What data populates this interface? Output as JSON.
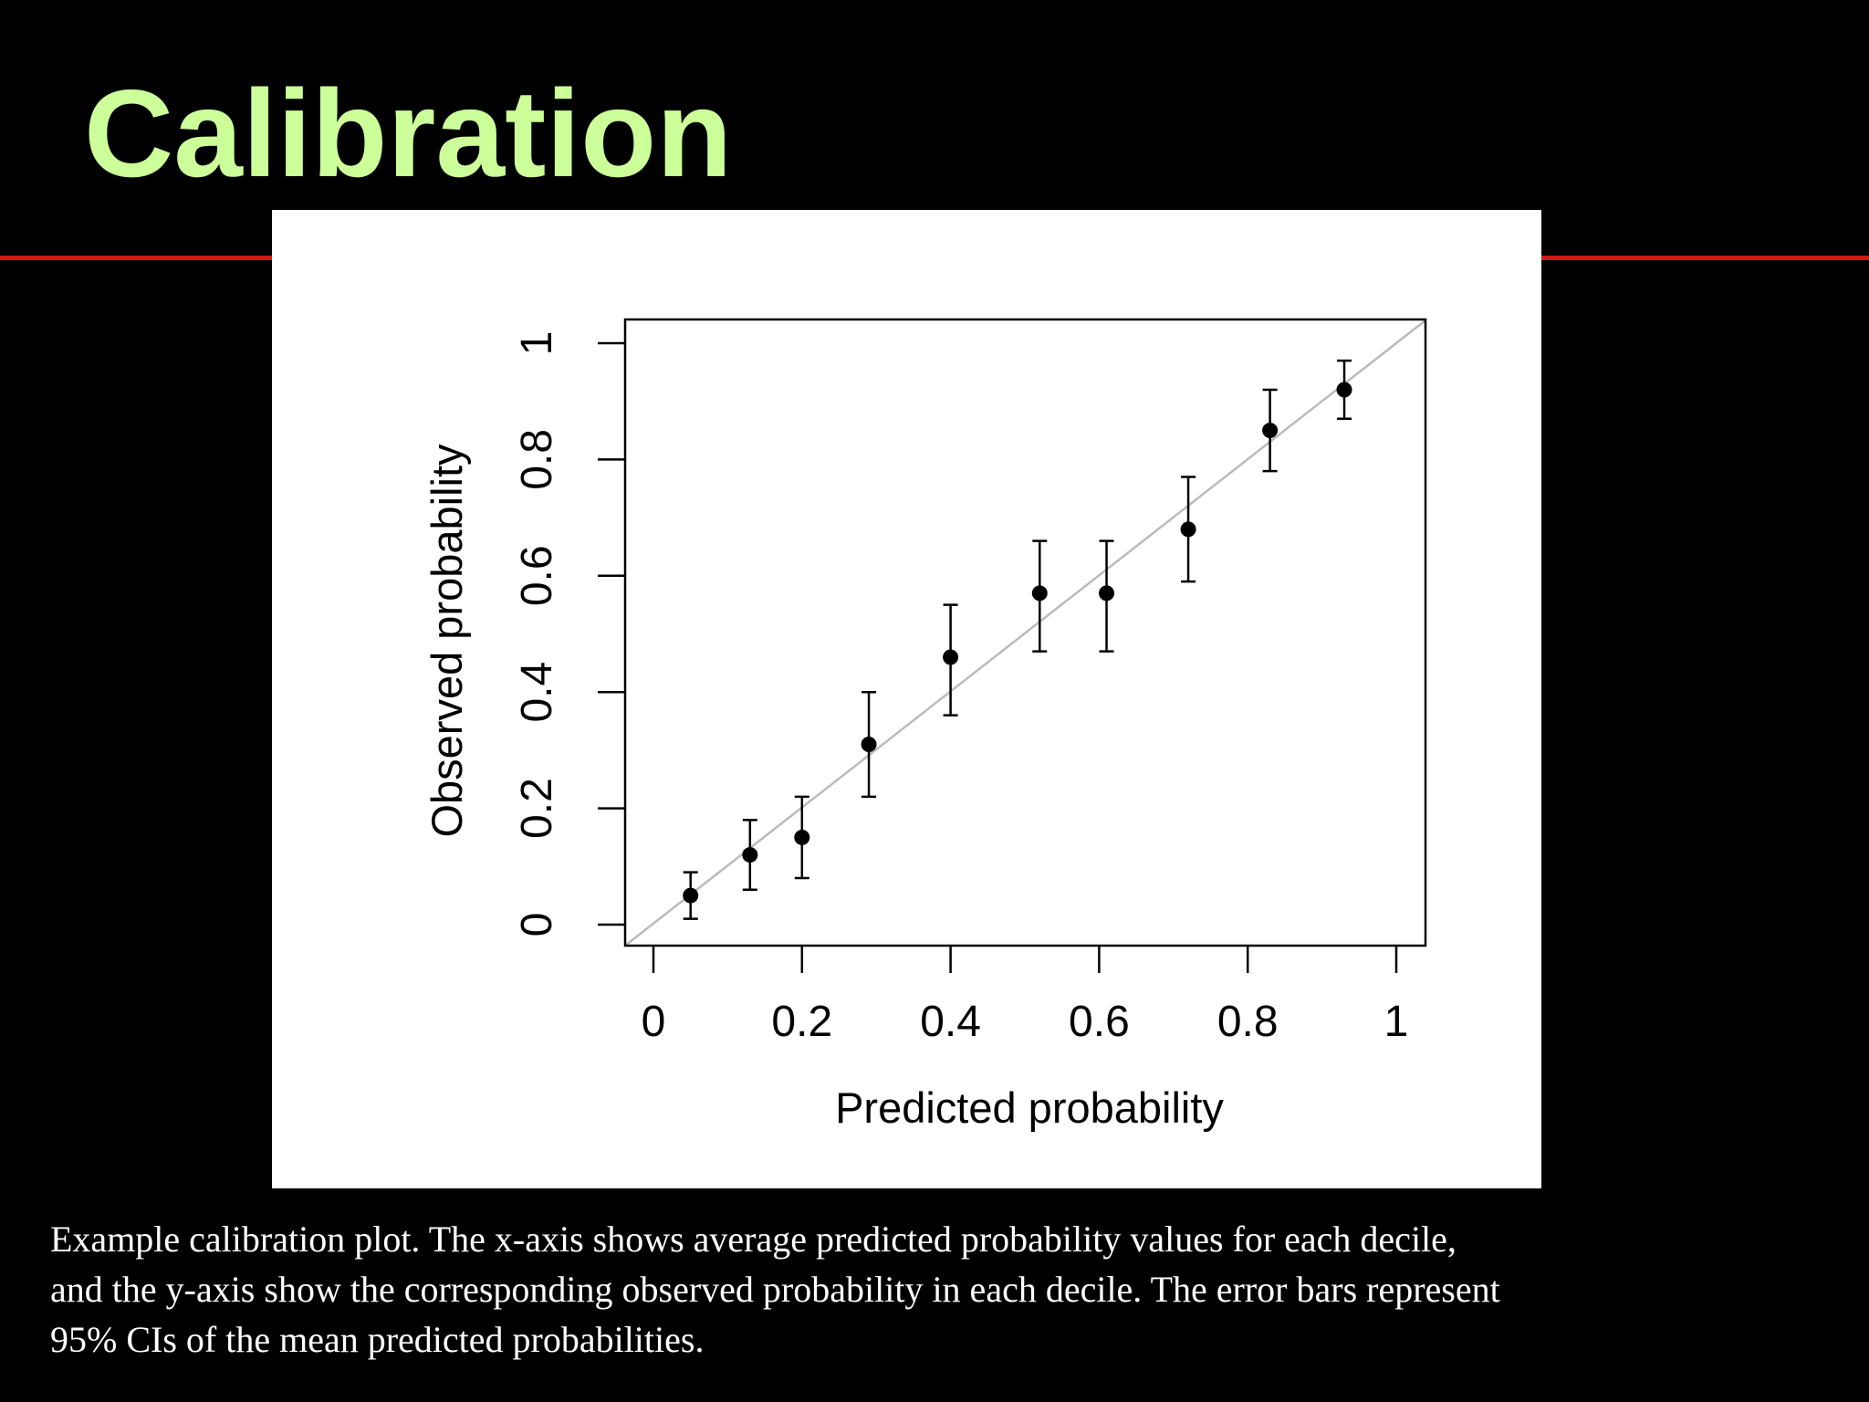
{
  "slide": {
    "title": "Calibration",
    "caption_lines": [
      "Example calibration plot. The x-axis shows average predicted probability values for each decile,",
      "and the y-axis show the corresponding observed probability in each decile. The error bars represent",
      "95% CIs of the mean predicted probabilities."
    ],
    "colors": {
      "background": "#000000",
      "title": "#ccff99",
      "rule": "#d01818",
      "caption": "#ffffff",
      "plot_background": "#ffffff",
      "reference_line": "#bbbbbb",
      "points": "#000000"
    }
  },
  "chart_data": {
    "type": "scatter",
    "title": "",
    "xlabel": "Predicted probability",
    "ylabel": "Observed probability",
    "xlim": [
      0,
      1
    ],
    "ylim": [
      0,
      1
    ],
    "x_ticks": [
      0,
      0.2,
      0.4,
      0.6,
      0.8,
      1
    ],
    "x_tick_labels": [
      "0",
      "0.2",
      "0.4",
      "0.6",
      "0.8",
      "1"
    ],
    "y_ticks": [
      0,
      0.2,
      0.4,
      0.6,
      0.8,
      1
    ],
    "y_tick_labels": [
      "0",
      "0.2",
      "0.4",
      "0.6",
      "0.8",
      "1"
    ],
    "grid": false,
    "legend": "none",
    "reference_line": {
      "from": [
        0,
        0
      ],
      "to": [
        1,
        1
      ]
    },
    "points": [
      {
        "x": 0.05,
        "y": 0.05,
        "ci_low": 0.01,
        "ci_high": 0.09
      },
      {
        "x": 0.13,
        "y": 0.12,
        "ci_low": 0.06,
        "ci_high": 0.18
      },
      {
        "x": 0.2,
        "y": 0.15,
        "ci_low": 0.08,
        "ci_high": 0.22
      },
      {
        "x": 0.29,
        "y": 0.31,
        "ci_low": 0.22,
        "ci_high": 0.4
      },
      {
        "x": 0.4,
        "y": 0.46,
        "ci_low": 0.36,
        "ci_high": 0.55
      },
      {
        "x": 0.52,
        "y": 0.57,
        "ci_low": 0.47,
        "ci_high": 0.66
      },
      {
        "x": 0.61,
        "y": 0.57,
        "ci_low": 0.47,
        "ci_high": 0.66
      },
      {
        "x": 0.72,
        "y": 0.68,
        "ci_low": 0.59,
        "ci_high": 0.77
      },
      {
        "x": 0.83,
        "y": 0.85,
        "ci_low": 0.78,
        "ci_high": 0.92
      },
      {
        "x": 0.93,
        "y": 0.92,
        "ci_low": 0.87,
        "ci_high": 0.97
      }
    ]
  }
}
